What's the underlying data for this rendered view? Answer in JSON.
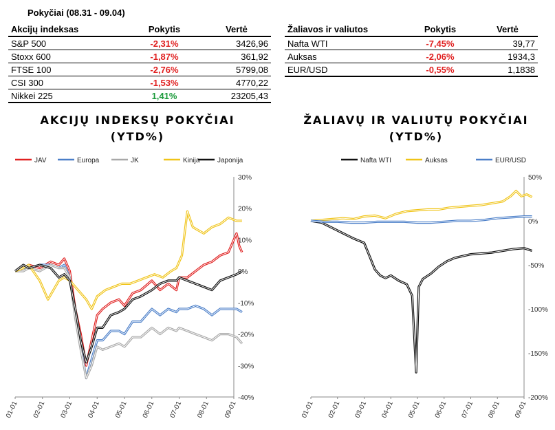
{
  "header": {
    "period": "Pokyčiai (08.31 - 09.04)"
  },
  "indices_table": {
    "columns": [
      "Akcijų indeksas",
      "Pokytis",
      "Vertė"
    ],
    "rows": [
      {
        "name": "S&P 500",
        "change": "-2,31%",
        "value": "3426,96"
      },
      {
        "name": "Stoxx 600",
        "change": "-1,87%",
        "value": "361,92"
      },
      {
        "name": "FTSE 100",
        "change": "-2,76%",
        "value": "5799,08"
      },
      {
        "name": "CSI 300",
        "change": "-1,53%",
        "value": "4770,22"
      },
      {
        "name": "Nikkei 225",
        "change": "1,41%",
        "value": "23205,43"
      }
    ]
  },
  "commodities_table": {
    "columns": [
      "Žaliavos ir valiutos",
      "Pokytis",
      "Vertė"
    ],
    "rows": [
      {
        "name": "Nafta WTI",
        "change": "-7,45%",
        "value": "39,77"
      },
      {
        "name": "Auksas",
        "change": "-2,06%",
        "value": "1934,3"
      },
      {
        "name": "EUR/USD",
        "change": "-0,55%",
        "value": "1,1838"
      }
    ]
  },
  "colors": {
    "negative": "#e02020",
    "positive": "#1a9a3a"
  },
  "chart_data": [
    {
      "type": "line",
      "title_line1": "AKCIJŲ INDEKSŲ POKYČIAI",
      "title_line2": "(YTD%)",
      "x_ticks": [
        "01-01",
        "02-01",
        "03-01",
        "04-01",
        "05-01",
        "06-01",
        "07-01",
        "08-01",
        "09-01"
      ],
      "y_ticks": [
        "30%",
        "20%",
        "10%",
        "0%",
        "-10%",
        "-20%",
        "-30%",
        "-40%"
      ],
      "ylim": [
        -40,
        30
      ],
      "legend_position": "top",
      "series": [
        {
          "name": "JAV",
          "color": "#e02020",
          "x": [
            0,
            0.3,
            0.5,
            0.9,
            1.3,
            1.6,
            1.8,
            2.0,
            2.2,
            2.4,
            2.6,
            2.8,
            3.0,
            3.2,
            3.5,
            3.8,
            4.0,
            4.3,
            4.6,
            5.0,
            5.3,
            5.6,
            5.9,
            6.0,
            6.3,
            6.6,
            6.9,
            7.2,
            7.5,
            7.8,
            8.1,
            8.2,
            8.3
          ],
          "y": [
            0,
            1,
            2,
            1,
            3,
            2,
            4,
            0,
            -12,
            -20,
            -30,
            -22,
            -14,
            -12,
            -10,
            -9,
            -11,
            -7,
            -6,
            -3,
            -6,
            -4,
            -6,
            -2,
            -2,
            0,
            2,
            3,
            5,
            6,
            12,
            8,
            6
          ]
        },
        {
          "name": "Europa",
          "color": "#4a7ec8",
          "x": [
            0,
            0.3,
            0.5,
            0.9,
            1.3,
            1.6,
            1.8,
            2.0,
            2.2,
            2.4,
            2.6,
            2.8,
            3.0,
            3.2,
            3.5,
            3.8,
            4.0,
            4.3,
            4.6,
            5.0,
            5.3,
            5.6,
            5.9,
            6.0,
            6.3,
            6.6,
            6.9,
            7.2,
            7.5,
            7.8,
            8.1,
            8.3
          ],
          "y": [
            0,
            1,
            1,
            2,
            2,
            1,
            2,
            -2,
            -14,
            -24,
            -34,
            -28,
            -22,
            -22,
            -19,
            -19,
            -20,
            -16,
            -16,
            -12,
            -14,
            -12,
            -13,
            -12,
            -12,
            -11,
            -12,
            -14,
            -12,
            -12,
            -12,
            -13
          ]
        },
        {
          "name": "JK",
          "color": "#a8a8a8",
          "x": [
            0,
            0.3,
            0.5,
            0.9,
            1.3,
            1.6,
            1.8,
            2.0,
            2.2,
            2.4,
            2.6,
            2.8,
            3.0,
            3.2,
            3.5,
            3.8,
            4.0,
            4.3,
            4.6,
            5.0,
            5.3,
            5.6,
            5.9,
            6.0,
            6.3,
            6.6,
            6.9,
            7.2,
            7.5,
            7.8,
            8.1,
            8.3
          ],
          "y": [
            0,
            0,
            1,
            0,
            2,
            1,
            1,
            -2,
            -15,
            -25,
            -34,
            -30,
            -24,
            -25,
            -24,
            -23,
            -24,
            -21,
            -21,
            -18,
            -20,
            -18,
            -19,
            -18,
            -19,
            -20,
            -21,
            -22,
            -20,
            -20,
            -21,
            -23
          ]
        },
        {
          "name": "Kinija",
          "color": "#f0c418",
          "x": [
            0,
            0.3,
            0.5,
            0.9,
            1.2,
            1.4,
            1.6,
            1.8,
            2.0,
            2.3,
            2.6,
            2.8,
            3.0,
            3.3,
            3.6,
            3.9,
            4.2,
            4.5,
            4.8,
            5.1,
            5.4,
            5.7,
            5.9,
            6.1,
            6.3,
            6.5,
            6.7,
            6.9,
            7.2,
            7.5,
            7.8,
            8.1,
            8.3
          ],
          "y": [
            0,
            1,
            2,
            -3,
            -9,
            -6,
            -3,
            -2,
            -3,
            -6,
            -9,
            -12,
            -8,
            -6,
            -5,
            -4,
            -4,
            -3,
            -2,
            -1,
            -2,
            0,
            1,
            5,
            19,
            14,
            13,
            12,
            14,
            15,
            17,
            16,
            16
          ]
        },
        {
          "name": "Japonija",
          "color": "#111111",
          "x": [
            0,
            0.3,
            0.5,
            0.9,
            1.3,
            1.6,
            1.8,
            2.0,
            2.2,
            2.4,
            2.6,
            2.8,
            3.0,
            3.2,
            3.5,
            3.8,
            4.0,
            4.3,
            4.6,
            5.0,
            5.3,
            5.6,
            5.9,
            6.0,
            6.3,
            6.6,
            6.9,
            7.2,
            7.5,
            7.8,
            8.1,
            8.3
          ],
          "y": [
            0,
            2,
            1,
            2,
            1,
            -2,
            -1,
            -3,
            -12,
            -22,
            -29,
            -24,
            -18,
            -18,
            -14,
            -13,
            -12,
            -9,
            -8,
            -6,
            -4,
            -3,
            -3,
            -2,
            -3,
            -4,
            -5,
            -6,
            -3,
            -2,
            -1,
            0
          ]
        }
      ]
    },
    {
      "type": "line",
      "title_line1": "ŽALIAVŲ IR VALIUTŲ POKYČIAI",
      "title_line2": "(YTD%)",
      "x_ticks": [
        "01-01",
        "02-01",
        "03-01",
        "04-01",
        "05-01",
        "06-01",
        "07-01",
        "08-01",
        "09-01"
      ],
      "y_ticks": [
        "50%",
        "0%",
        "-50%",
        "-100%",
        "-150%",
        "-200%"
      ],
      "ylim": [
        -200,
        50
      ],
      "legend_position": "top",
      "series": [
        {
          "name": "Nafta WTI",
          "color": "#111111",
          "x": [
            0,
            0.4,
            0.8,
            1.2,
            1.6,
            2.0,
            2.2,
            2.4,
            2.6,
            2.8,
            3.0,
            3.3,
            3.6,
            3.8,
            3.95,
            4.05,
            4.2,
            4.5,
            4.8,
            5.1,
            5.4,
            5.7,
            6.0,
            6.4,
            6.8,
            7.2,
            7.6,
            8.0,
            8.3
          ],
          "y": [
            0,
            -2,
            -8,
            -14,
            -20,
            -25,
            -40,
            -55,
            -62,
            -65,
            -62,
            -68,
            -72,
            -85,
            -172,
            -75,
            -66,
            -60,
            -52,
            -46,
            -42,
            -40,
            -38,
            -37,
            -36,
            -34,
            -32,
            -31,
            -34
          ]
        },
        {
          "name": "Auksas",
          "color": "#f0c418",
          "x": [
            0,
            0.4,
            0.8,
            1.2,
            1.6,
            2.0,
            2.4,
            2.8,
            3.2,
            3.6,
            4.0,
            4.4,
            4.8,
            5.2,
            5.6,
            6.0,
            6.4,
            6.8,
            7.2,
            7.5,
            7.7,
            7.9,
            8.1,
            8.3
          ],
          "y": [
            0,
            1,
            2,
            3,
            2,
            5,
            6,
            3,
            8,
            11,
            12,
            13,
            13,
            15,
            16,
            17,
            18,
            20,
            22,
            28,
            34,
            28,
            30,
            27
          ]
        },
        {
          "name": "EUR/USD",
          "color": "#4a7ec8",
          "x": [
            0,
            0.5,
            1.0,
            1.5,
            2.0,
            2.5,
            3.0,
            3.5,
            4.0,
            4.5,
            5.0,
            5.5,
            6.0,
            6.5,
            7.0,
            7.5,
            8.0,
            8.3
          ],
          "y": [
            0,
            -1,
            -1,
            -2,
            -2,
            -1,
            -1,
            -1,
            -2,
            -2,
            -1,
            0,
            0,
            1,
            3,
            4,
            5,
            5
          ]
        }
      ]
    }
  ]
}
